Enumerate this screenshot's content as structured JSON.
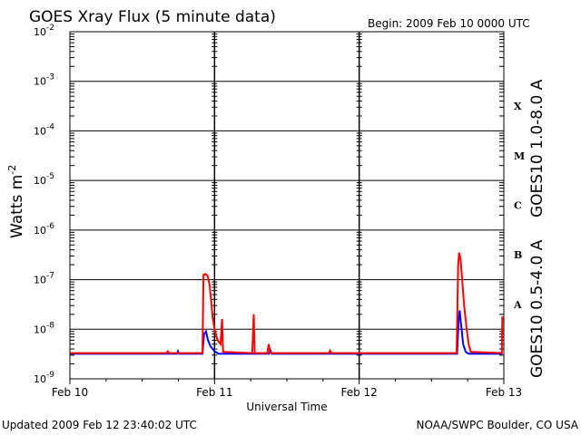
{
  "header": {
    "title": "GOES Xray Flux (5 minute data)",
    "begin": "Begin:  2009 Feb 10 0000 UTC"
  },
  "footer": {
    "updated": "Updated 2009 Feb 12 23:40:02 UTC",
    "source": "NOAA/SWPC Boulder, CO USA"
  },
  "colors": {
    "long": "#ff0000",
    "short": "#0000ff",
    "axis": "#000000"
  },
  "chart_data": {
    "type": "line",
    "title": "GOES Xray Flux (5 minute data)",
    "xlabel": "Universal Time",
    "ylabel": "Watts m",
    "ylabel_exponent": "-2",
    "y_scale": "log",
    "ylim": [
      1e-09,
      0.01
    ],
    "xlim": [
      "2009-02-10 00:00",
      "2009-02-13 00:00"
    ],
    "x_ticks": [
      "Feb 10",
      "Feb 11",
      "Feb 12",
      "Feb 13"
    ],
    "y_ticks": [
      {
        "base": "10",
        "exp": "-9",
        "value": 1e-09
      },
      {
        "base": "10",
        "exp": "-8",
        "value": 1e-08
      },
      {
        "base": "10",
        "exp": "-7",
        "value": 1e-07
      },
      {
        "base": "10",
        "exp": "-6",
        "value": 1e-06
      },
      {
        "base": "10",
        "exp": "-5",
        "value": 1e-05
      },
      {
        "base": "10",
        "exp": "-4",
        "value": 0.0001
      },
      {
        "base": "10",
        "exp": "-3",
        "value": 0.001
      },
      {
        "base": "10",
        "exp": "-2",
        "value": 0.01
      }
    ],
    "grid": "horizontal decade lines",
    "flare_classes": [
      {
        "label": "A",
        "value": 3.16e-08
      },
      {
        "label": "B",
        "value": 3.16e-07
      },
      {
        "label": "C",
        "value": 3.16e-06
      },
      {
        "label": "M",
        "value": 3.16e-05
      },
      {
        "label": "X",
        "value": 0.000316
      }
    ],
    "series": [
      {
        "name": "GOES10 1.0-8.0 A",
        "color": "#ff0000",
        "points": [
          [
            "2009-02-10 00:00",
            3.3e-09
          ],
          [
            "2009-02-10 16:00",
            3.3e-09
          ],
          [
            "2009-02-10 16:15",
            3.6e-09
          ],
          [
            "2009-02-10 16:30",
            3.3e-09
          ],
          [
            "2009-02-10 22:00",
            3.3e-09
          ],
          [
            "2009-02-10 22:10",
            1.25e-07
          ],
          [
            "2009-02-10 22:30",
            1.3e-07
          ],
          [
            "2009-02-10 22:50",
            1.2e-07
          ],
          [
            "2009-02-10 23:10",
            8e-08
          ],
          [
            "2009-02-10 23:25",
            4e-08
          ],
          [
            "2009-02-10 23:40",
            1.8e-08
          ],
          [
            "2009-02-11 00:00",
            1e-08
          ],
          [
            "2009-02-11 00:30",
            6e-09
          ],
          [
            "2009-02-11 01:00",
            5e-09
          ],
          [
            "2009-02-11 01:15",
            1.6e-08
          ],
          [
            "2009-02-11 01:25",
            3.5e-09
          ],
          [
            "2009-02-11 06:15",
            3.3e-09
          ],
          [
            "2009-02-11 06:30",
            2e-08
          ],
          [
            "2009-02-11 06:40",
            3.3e-09
          ],
          [
            "2009-02-11 08:45",
            3.3e-09
          ],
          [
            "2009-02-11 09:00",
            5e-09
          ],
          [
            "2009-02-11 09:15",
            3.3e-09
          ],
          [
            "2009-02-11 19:00",
            3.3e-09
          ],
          [
            "2009-02-11 19:10",
            3.7e-09
          ],
          [
            "2009-02-11 19:25",
            3.3e-09
          ],
          [
            "2009-02-12 16:10",
            3.3e-09
          ],
          [
            "2009-02-12 16:25",
            2e-07
          ],
          [
            "2009-02-12 16:35",
            3.5e-07
          ],
          [
            "2009-02-12 16:50",
            2.5e-07
          ],
          [
            "2009-02-12 17:05",
            1e-07
          ],
          [
            "2009-02-12 17:25",
            3e-08
          ],
          [
            "2009-02-12 17:50",
            1e-08
          ],
          [
            "2009-02-12 18:10",
            5e-09
          ],
          [
            "2009-02-12 18:30",
            3.5e-09
          ],
          [
            "2009-02-12 23:40",
            3.3e-09
          ],
          [
            "2009-02-12 23:45",
            1.8e-08
          ]
        ]
      },
      {
        "name": "GOES10 0.5-4.0 A",
        "color": "#0000ff",
        "points": [
          [
            "2009-02-10 00:00",
            3.2e-09
          ],
          [
            "2009-02-10 17:45",
            3.2e-09
          ],
          [
            "2009-02-10 17:55",
            3.6e-09
          ],
          [
            "2009-02-10 18:05",
            3.2e-09
          ],
          [
            "2009-02-10 22:00",
            3.2e-09
          ],
          [
            "2009-02-10 22:15",
            8e-09
          ],
          [
            "2009-02-10 22:35",
            9e-09
          ],
          [
            "2009-02-10 22:55",
            6e-09
          ],
          [
            "2009-02-10 23:20",
            4.5e-09
          ],
          [
            "2009-02-11 00:00",
            3.6e-09
          ],
          [
            "2009-02-11 00:40",
            3.2e-09
          ],
          [
            "2009-02-11 09:00",
            3.2e-09
          ],
          [
            "2009-02-11 09:15",
            3.8e-09
          ],
          [
            "2009-02-11 09:30",
            3.2e-09
          ],
          [
            "2009-02-12 16:15",
            3.2e-09
          ],
          [
            "2009-02-12 16:30",
            1.5e-08
          ],
          [
            "2009-02-12 16:40",
            2.4e-08
          ],
          [
            "2009-02-12 16:55",
            1.2e-08
          ],
          [
            "2009-02-12 17:15",
            5e-09
          ],
          [
            "2009-02-12 17:40",
            3.5e-09
          ],
          [
            "2009-02-12 18:10",
            3.2e-09
          ],
          [
            "2009-02-12 23:45",
            3.2e-09
          ]
        ]
      }
    ]
  }
}
